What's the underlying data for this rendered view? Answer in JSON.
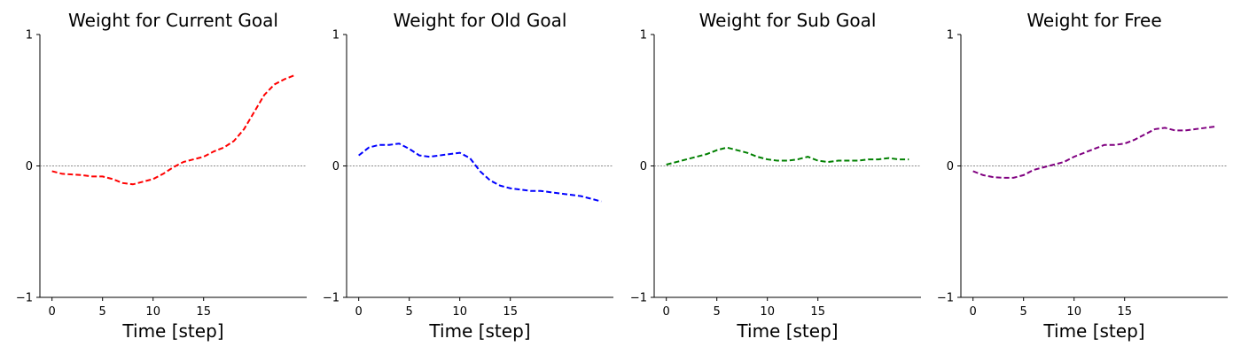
{
  "chart_data": [
    {
      "type": "line",
      "title": "Weight for Current Goal",
      "xlabel": "Time [step]",
      "ylabel": "",
      "xlim": [
        -1.2,
        25.2
      ],
      "ylim": [
        -1,
        1
      ],
      "xticks": [
        0,
        5,
        10,
        15
      ],
      "yticks": [
        -1,
        0,
        1
      ],
      "ytick_labels": [
        "−1",
        "0",
        "1"
      ],
      "reference_line": 0,
      "color": "#ff0000",
      "series": [
        {
          "x": [
            0,
            1,
            2,
            3,
            4,
            5,
            6,
            7,
            8,
            9,
            10,
            11,
            12,
            13,
            14,
            15,
            16,
            17,
            18,
            19,
            20,
            21,
            22,
            23,
            24
          ],
          "values": [
            -0.04,
            -0.06,
            -0.065,
            -0.07,
            -0.08,
            -0.08,
            -0.1,
            -0.13,
            -0.14,
            -0.12,
            -0.1,
            -0.06,
            -0.01,
            0.03,
            0.05,
            0.07,
            0.11,
            0.14,
            0.19,
            0.28,
            0.41,
            0.54,
            0.62,
            0.66,
            0.69
          ]
        }
      ]
    },
    {
      "type": "line",
      "title": "Weight for Old Goal",
      "xlabel": "Time [step]",
      "ylabel": "",
      "xlim": [
        -1.2,
        25.2
      ],
      "ylim": [
        -1,
        1
      ],
      "xticks": [
        0,
        5,
        10,
        15
      ],
      "yticks": [
        -1,
        0,
        1
      ],
      "ytick_labels": [
        "−1",
        "0",
        "1"
      ],
      "reference_line": 0,
      "color": "#0000ff",
      "series": [
        {
          "x": [
            0,
            1,
            2,
            3,
            4,
            5,
            6,
            7,
            8,
            9,
            10,
            11,
            12,
            13,
            14,
            15,
            16,
            17,
            18,
            19,
            20,
            21,
            22,
            23,
            24
          ],
          "values": [
            0.08,
            0.14,
            0.16,
            0.16,
            0.17,
            0.13,
            0.08,
            0.07,
            0.08,
            0.09,
            0.1,
            0.06,
            -0.04,
            -0.11,
            -0.15,
            -0.17,
            -0.18,
            -0.19,
            -0.19,
            -0.2,
            -0.21,
            -0.22,
            -0.23,
            -0.25,
            -0.27
          ]
        }
      ]
    },
    {
      "type": "line",
      "title": "Weight for Sub Goal",
      "xlabel": "Time [step]",
      "ylabel": "",
      "xlim": [
        -1.2,
        25.2
      ],
      "ylim": [
        -1,
        1
      ],
      "xticks": [
        0,
        5,
        10,
        15
      ],
      "yticks": [
        -1,
        0,
        1
      ],
      "ytick_labels": [
        "−1",
        "0",
        "1"
      ],
      "reference_line": 0,
      "color": "#008000",
      "series": [
        {
          "x": [
            0,
            1,
            2,
            3,
            4,
            5,
            6,
            7,
            8,
            9,
            10,
            11,
            12,
            13,
            14,
            15,
            16,
            17,
            18,
            19,
            20,
            21,
            22,
            23,
            24
          ],
          "values": [
            0.01,
            0.03,
            0.05,
            0.07,
            0.09,
            0.12,
            0.14,
            0.12,
            0.1,
            0.07,
            0.05,
            0.04,
            0.04,
            0.05,
            0.07,
            0.04,
            0.03,
            0.04,
            0.04,
            0.04,
            0.05,
            0.05,
            0.06,
            0.05,
            0.05
          ]
        }
      ]
    },
    {
      "type": "line",
      "title": "Weight for Free",
      "xlabel": "Time [step]",
      "ylabel": "",
      "xlim": [
        -1.2,
        25.2
      ],
      "ylim": [
        -1,
        1
      ],
      "xticks": [
        0,
        5,
        10,
        15
      ],
      "yticks": [
        -1,
        0,
        1
      ],
      "ytick_labels": [
        "−1",
        "0",
        "1"
      ],
      "reference_line": 0,
      "color": "#800080",
      "series": [
        {
          "x": [
            0,
            1,
            2,
            3,
            4,
            5,
            6,
            7,
            8,
            9,
            10,
            11,
            12,
            13,
            14,
            15,
            16,
            17,
            18,
            19,
            20,
            21,
            22,
            23,
            24
          ],
          "values": [
            -0.04,
            -0.07,
            -0.085,
            -0.09,
            -0.09,
            -0.07,
            -0.03,
            -0.01,
            0.01,
            0.03,
            0.07,
            0.1,
            0.13,
            0.16,
            0.16,
            0.17,
            0.2,
            0.24,
            0.28,
            0.29,
            0.27,
            0.27,
            0.28,
            0.29,
            0.3
          ]
        }
      ]
    }
  ]
}
